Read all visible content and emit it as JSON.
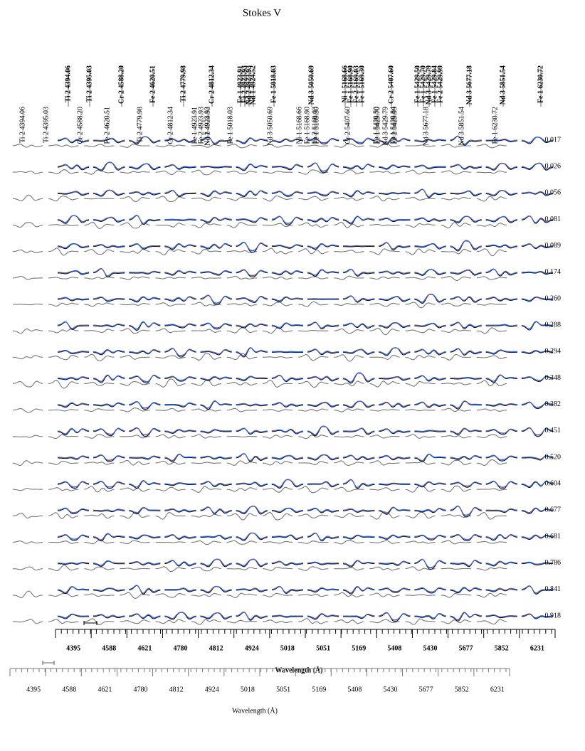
{
  "chart_data": {
    "type": "line",
    "title": "Stokes V",
    "x_label": "Wavelength (Å)",
    "categories": [
      "4395",
      "4588",
      "4621",
      "4780",
      "4812",
      "4924",
      "5018",
      "5051",
      "5169",
      "5408",
      "5430",
      "5677",
      "5852",
      "6231"
    ],
    "phases": [
      "0.017",
      "0.026",
      "0.056",
      "0.081",
      "0.089",
      "0.174",
      "0.260",
      "0.288",
      "0.294",
      "0.348",
      "0.382",
      "0.451",
      "0.520",
      "0.604",
      "0.677",
      "0.681",
      "0.786",
      "0.841",
      "0.918"
    ],
    "line_labels": [
      "Ti 2 4394.06",
      "Ti 2 4395.03",
      "Cr 2 4588.20",
      "Fe 2 4620.51",
      "Ti 2 4779.98",
      "Cr 2 4812.34",
      "Fe 1 4923.91",
      "Fe 2 4923.93",
      "Nd 2 4923.93",
      "Nd 1 4924.52",
      "Fe 1 5018.03",
      "Nd 3 5050.69",
      "Ni 1 5168.66",
      "Fe 1 5168.90",
      "Fe 2 5169.03",
      "Fe 1 5169.30",
      "Cr 2 5407.60",
      "Fe 1 5429.50",
      "Fe 1 5429.70",
      "Nd 3 5429.79",
      "Fe 1 5429.84",
      "Fe 2 5429.99",
      "Nd 3 5677.18",
      "Nd 3 5851.54",
      "Fe 1 6230.72"
    ]
  }
}
